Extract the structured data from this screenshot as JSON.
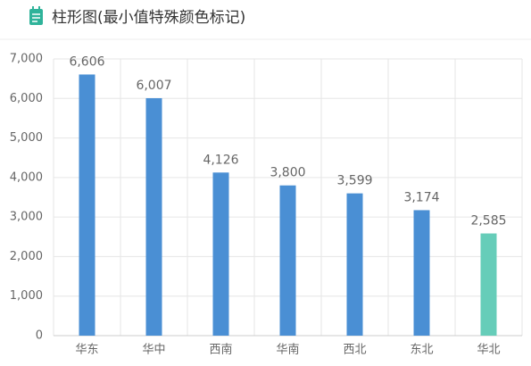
{
  "chart_data": {
    "type": "bar",
    "title": "柱形图(最小值特殊颜色标记)",
    "categories": [
      "华东",
      "华中",
      "西南",
      "华南",
      "西北",
      "东北",
      "华北"
    ],
    "values": [
      6606,
      6007,
      4126,
      3800,
      3599,
      3174,
      2585
    ],
    "value_labels": [
      "6,606",
      "6,007",
      "4,126",
      "3,800",
      "3,599",
      "3,174",
      "2,585"
    ],
    "color": "#4a8fd4",
    "min_color": "#66cdb9",
    "ylim": [
      0,
      7000
    ],
    "yticks": [
      0,
      {
        "value": 1000,
        "label": "1,000"
      },
      {
        "value": 2000,
        "label": "2,000"
      },
      {
        "value": 3000,
        "label": "3,000"
      },
      {
        "value": 4000,
        "label": "4,000"
      },
      {
        "value": 5000,
        "label": "5,000"
      },
      {
        "value": 6000,
        "label": "6,000"
      },
      {
        "value": 7000,
        "label": "7,000"
      }
    ],
    "grid": true
  }
}
